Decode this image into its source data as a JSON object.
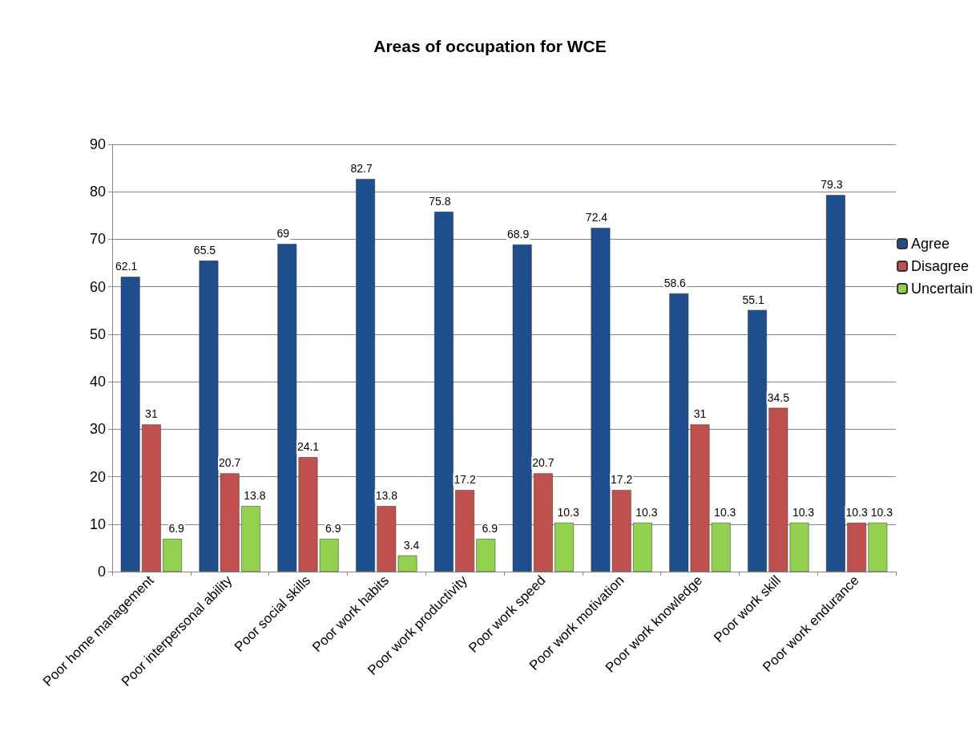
{
  "chart_data": {
    "type": "bar",
    "title": "Areas of occupation for WCE",
    "categories": [
      "Poor home management",
      "Poor interpersonal ability",
      "Poor social skills",
      "Poor work habits",
      "Poor work productivity",
      "Poor work speed",
      "Poor work motivation",
      "Poor work knowledge",
      "Poor work skill",
      "Poor work endurance"
    ],
    "series": [
      {
        "name": "Agree",
        "color": "#1f4e8c",
        "values": [
          62.1,
          65.5,
          69,
          82.7,
          75.8,
          68.9,
          72.4,
          58.6,
          55.1,
          79.3
        ]
      },
      {
        "name": "Disagree",
        "color": "#c0504d",
        "values": [
          31,
          20.7,
          24.1,
          13.8,
          17.2,
          20.7,
          17.2,
          31,
          34.5,
          10.3
        ]
      },
      {
        "name": "Uncertain",
        "color": "#92d050",
        "values": [
          6.9,
          13.8,
          6.9,
          3.4,
          6.9,
          10.3,
          10.3,
          10.3,
          10.3,
          10.3
        ]
      }
    ],
    "ylim": [
      0,
      90
    ],
    "yticks": [
      0,
      10,
      20,
      30,
      40,
      50,
      60,
      70,
      80,
      90
    ],
    "grid": "y",
    "legend": "right",
    "data_labels": true
  }
}
